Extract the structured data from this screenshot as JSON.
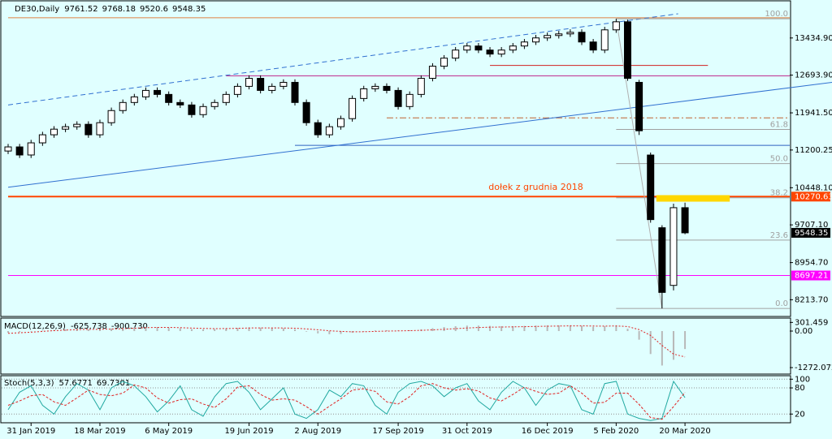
{
  "chart_data": [
    {
      "type": "candlestick",
      "title": "DE30,Daily",
      "header_values": [
        9761.52,
        9768.18,
        9520.6,
        9548.35
      ],
      "categories": [
        null,
        null,
        "31 Jan 2019",
        null,
        null,
        null,
        null,
        null,
        "18 Mar 2019",
        null,
        null,
        null,
        null,
        null,
        "6 May 2019",
        null,
        null,
        null,
        null,
        null,
        null,
        "19 Jun 2019",
        null,
        null,
        null,
        null,
        null,
        "2 Aug 2019",
        null,
        null,
        null,
        null,
        null,
        null,
        "17 Sep 2019",
        null,
        null,
        null,
        null,
        null,
        "31 Oct 2019",
        null,
        null,
        null,
        null,
        null,
        null,
        "16 Dec 2019",
        null,
        null,
        null,
        null,
        null,
        "5 Feb 2020",
        null,
        null,
        null,
        null,
        null,
        "20 Mar 2020"
      ],
      "open": [
        11180,
        11262,
        11101,
        11343,
        11504,
        11616,
        11665,
        11713,
        11504,
        11745,
        11987,
        12148,
        12260,
        12389,
        12309,
        12148,
        12099,
        11906,
        12067,
        12148,
        12309,
        12470,
        12630,
        12389,
        12470,
        12550,
        12148,
        11745,
        11504,
        11665,
        11826,
        12228,
        12421,
        12470,
        12389,
        12067,
        12309,
        12630,
        12872,
        13033,
        13194,
        13275,
        13194,
        13114,
        13194,
        13275,
        13355,
        13436,
        13484,
        13516,
        13548,
        13355,
        13194,
        13597,
        13758,
        12550,
        11100,
        9650,
        8500,
        10050
      ],
      "high": [
        11322,
        11322,
        11403,
        11564,
        11676,
        11725,
        11773,
        11773,
        11805,
        12047,
        12208,
        12320,
        12449,
        12449,
        12369,
        12208,
        12159,
        12127,
        12208,
        12369,
        12530,
        12690,
        12690,
        12530,
        12610,
        12610,
        12208,
        11805,
        11725,
        11886,
        12288,
        12481,
        12530,
        12530,
        12449,
        12369,
        12690,
        12932,
        13093,
        13254,
        13335,
        13335,
        13254,
        13254,
        13335,
        13415,
        13496,
        13544,
        13576,
        13608,
        13608,
        13415,
        13657,
        13818,
        13800,
        12600,
        11150,
        9700,
        10130,
        10150
      ],
      "low": [
        11120,
        11041,
        11041,
        11283,
        11444,
        11556,
        11605,
        11444,
        11444,
        11685,
        11927,
        12088,
        12200,
        12249,
        12088,
        12039,
        11846,
        11846,
        12007,
        12088,
        12249,
        12410,
        12329,
        12329,
        12410,
        12088,
        11685,
        11444,
        11444,
        11605,
        11766,
        12168,
        12361,
        12329,
        12007,
        12007,
        12249,
        12570,
        12812,
        12973,
        13134,
        13134,
        13054,
        13054,
        13134,
        13215,
        13295,
        13376,
        13424,
        13456,
        13295,
        13134,
        13134,
        13537,
        12580,
        11500,
        9750,
        8040,
        8400,
        9520.6
      ],
      "close": [
        11262,
        11101,
        11343,
        11504,
        11616,
        11665,
        11713,
        11504,
        11745,
        11987,
        12148,
        12260,
        12389,
        12309,
        12148,
        12099,
        11906,
        12067,
        12148,
        12309,
        12470,
        12630,
        12389,
        12470,
        12550,
        12148,
        11745,
        11504,
        11665,
        11826,
        12228,
        12421,
        12470,
        12389,
        12067,
        12309,
        12630,
        12872,
        13033,
        13194,
        13275,
        13194,
        13114,
        13194,
        13275,
        13355,
        13436,
        13484,
        13516,
        13548,
        13355,
        13194,
        13597,
        13758,
        12630,
        11584,
        9812,
        8360,
        10050,
        9548.35
      ],
      "ylim": [
        7880,
        14160
      ],
      "yticks": [
        {
          "value": 13434.9,
          "label": "13434.90"
        },
        {
          "value": 12693.9,
          "label": "12693.90"
        },
        {
          "value": 11941.5,
          "label": "11941.50"
        },
        11200.25,
        {
          "value": 10448.1,
          "label": "10448.10"
        },
        {
          "value": 9707.1,
          "label": "9707.10"
        },
        {
          "value": 8954.7,
          "label": "8954.70"
        },
        {
          "value": 8213.7,
          "label": "8213.70"
        }
      ],
      "price_labels": [
        {
          "value": 10270.63,
          "color": "#ff4500"
        },
        {
          "value": 8697.21,
          "color": "#ff00ff"
        },
        {
          "value": 9548.35,
          "color": "#000000"
        }
      ],
      "hlines": [
        {
          "price": 13838,
          "from": 0,
          "color": "#e08040"
        },
        {
          "price": 12888,
          "from": 42,
          "to": 61,
          "color": "#d02020"
        },
        {
          "price": 12679,
          "from": 19,
          "color": "#c03090"
        },
        {
          "price": 11842,
          "from": 33,
          "color": "#c06030",
          "dash": "8 3 2 3"
        },
        {
          "price": 11294,
          "from": 25,
          "color": "#3060c0"
        },
        {
          "price": 10270.63,
          "from": 0,
          "color": "#ff4500",
          "width": 2
        },
        {
          "price": 8697.21,
          "from": 0,
          "color": "#ff00ff"
        }
      ],
      "trendlines": [
        {
          "from": [
            0,
            12099
          ],
          "to": [
            58.4,
            13918
          ],
          "color": "#3070d0",
          "dash": "6 4"
        },
        {
          "from": [
            0,
            10457
          ],
          "to": [
            72.2,
            12550
          ],
          "color": "#3070d0"
        },
        {
          "from": [
            53,
            13818
          ],
          "to": [
            57,
            8040
          ],
          "color": "#b0b0b0"
        }
      ],
      "fibonacci": {
        "high": 13818,
        "low": 8040,
        "from": 53,
        "color": "#a0a0a0",
        "levels": [
          {
            "value": 100,
            "label": "100.0"
          },
          61.8,
          {
            "value": 50,
            "label": "50.0"
          },
          38.2,
          23.6,
          {
            "value": 0,
            "label": "0.0"
          }
        ]
      },
      "zone": {
        "from": 56.5,
        "to": 62.9,
        "top": 10300,
        "bottom": 10170,
        "color": "#ffd700"
      },
      "annotation": {
        "text": "dołek z grudnia 2018",
        "index": 46,
        "price": 10450,
        "color": "#ff4500"
      }
    },
    {
      "type": "macd",
      "title": "MACD(12,26,9)",
      "header_values": [
        -625.738,
        {
          "value": -900.73,
          "label": "-900.730"
        }
      ],
      "values": [
        -60,
        -40,
        -10,
        20,
        40,
        60,
        70,
        60,
        70,
        90,
        110,
        130,
        150,
        140,
        120,
        100,
        70,
        60,
        70,
        90,
        110,
        130,
        120,
        110,
        100,
        60,
        -20,
        -80,
        -110,
        -100,
        -60,
        -10,
        20,
        30,
        20,
        30,
        60,
        100,
        140,
        170,
        190,
        190,
        180,
        170,
        170,
        180,
        190,
        200,
        200,
        200,
        180,
        150,
        170,
        200,
        80,
        -300,
        -800,
        -1200,
        -1000,
        -625.738
      ],
      "signal": [
        -80,
        -60,
        -40,
        -10,
        15,
        35,
        50,
        58,
        62,
        70,
        85,
        100,
        118,
        128,
        126,
        118,
        104,
        92,
        86,
        88,
        95,
        106,
        110,
        110,
        107,
        98,
        75,
        45,
        12,
        -12,
        -25,
        -23,
        -12,
        0,
        7,
        13,
        25,
        42,
        62,
        84,
        106,
        123,
        135,
        142,
        148,
        154,
        161,
        169,
        175,
        180,
        180,
        174,
        173,
        178,
        158,
        50,
        -150,
        -500,
        -800,
        -900.73
      ],
      "ylim": [
        -1470,
        424
      ],
      "yticks": [
        301.459,
        {
          "value": 0,
          "label": "0.00"
        },
        -1272.072
      ]
    },
    {
      "type": "stochastic",
      "title": "Stoch(5,3,3)",
      "header_values": [
        57.6771,
        69.7301
      ],
      "main": [
        30,
        70,
        85,
        40,
        20,
        60,
        90,
        75,
        30,
        80,
        95,
        85,
        60,
        25,
        50,
        85,
        30,
        15,
        60,
        90,
        95,
        70,
        30,
        55,
        80,
        20,
        10,
        30,
        75,
        60,
        90,
        85,
        40,
        20,
        70,
        90,
        95,
        85,
        60,
        80,
        90,
        50,
        30,
        70,
        95,
        80,
        40,
        75,
        90,
        85,
        30,
        20,
        90,
        95,
        20,
        10,
        5,
        10,
        95,
        57.6771
      ],
      "signal": [
        40,
        50,
        62,
        65,
        48,
        40,
        57,
        75,
        65,
        62,
        68,
        87,
        80,
        57,
        45,
        53,
        55,
        43,
        35,
        55,
        82,
        85,
        65,
        52,
        55,
        52,
        37,
        20,
        38,
        55,
        75,
        78,
        72,
        48,
        43,
        60,
        85,
        90,
        80,
        75,
        78,
        73,
        57,
        50,
        65,
        82,
        72,
        65,
        68,
        85,
        68,
        45,
        47,
        68,
        68,
        42,
        12,
        8,
        37,
        69.7301
      ],
      "ylim": [
        0,
        108
      ],
      "yticks": [
        100,
        80,
        20
      ]
    }
  ]
}
